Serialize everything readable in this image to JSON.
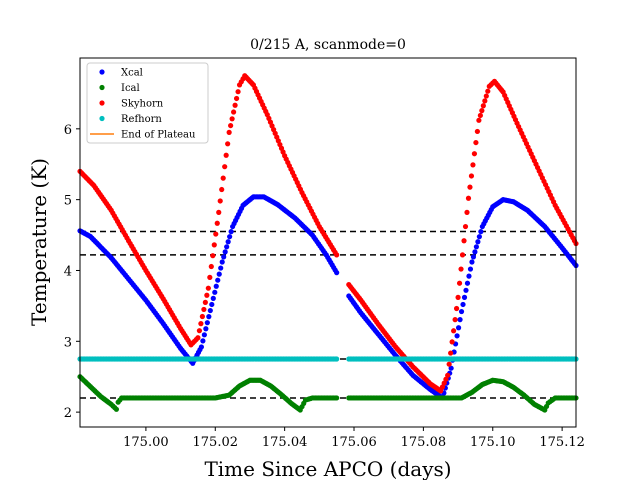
{
  "chart_data": {
    "type": "scatter",
    "title": "0/215 A, scanmode=0",
    "xlabel": "Time Since APCO (days)",
    "ylabel": "Temperature (K)",
    "xlim": [
      174.981,
      175.124
    ],
    "ylim": [
      1.79,
      7.0
    ],
    "x_ticks": [
      175.0,
      175.02,
      175.04,
      175.06,
      175.08,
      175.1,
      175.12
    ],
    "x_tick_labels": [
      "175.00",
      "175.02",
      "175.04",
      "175.06",
      "175.08",
      "175.10",
      "175.12"
    ],
    "y_ticks": [
      2,
      3,
      4,
      5,
      6
    ],
    "y_tick_labels": [
      "2",
      "3",
      "4",
      "5",
      "6"
    ],
    "grid": false,
    "legend_position": "top-left",
    "series": [
      {
        "name": "Xcal",
        "color": "#0000ff",
        "marker": "dot",
        "segments": [
          [
            [
              174.981,
              4.56
            ],
            [
              174.984,
              4.48
            ],
            [
              174.99,
              4.18
            ],
            [
              174.995,
              3.88
            ],
            [
              175.0,
              3.58
            ],
            [
              175.005,
              3.25
            ],
            [
              175.01,
              2.9
            ],
            [
              175.0135,
              2.69
            ],
            [
              175.016,
              2.92
            ],
            [
              175.019,
              3.52
            ],
            [
              175.022,
              4.12
            ],
            [
              175.025,
              4.62
            ],
            [
              175.028,
              4.92
            ],
            [
              175.031,
              5.04
            ],
            [
              175.034,
              5.04
            ],
            [
              175.038,
              4.93
            ],
            [
              175.043,
              4.74
            ],
            [
              175.048,
              4.5
            ],
            [
              175.052,
              4.22
            ],
            [
              175.055,
              3.97
            ]
          ],
          [
            [
              175.0585,
              3.64
            ],
            [
              175.062,
              3.4
            ],
            [
              175.067,
              3.1
            ],
            [
              175.072,
              2.8
            ],
            [
              175.077,
              2.52
            ],
            [
              175.082,
              2.32
            ],
            [
              175.0855,
              2.2
            ],
            [
              175.088,
              2.62
            ],
            [
              175.091,
              3.42
            ],
            [
              175.094,
              4.12
            ],
            [
              175.097,
              4.62
            ],
            [
              175.1,
              4.9
            ],
            [
              175.103,
              5.0
            ],
            [
              175.106,
              4.97
            ],
            [
              175.11,
              4.85
            ],
            [
              175.115,
              4.62
            ],
            [
              175.12,
              4.32
            ],
            [
              175.124,
              4.07
            ]
          ]
        ]
      },
      {
        "name": "Ical",
        "color": "#008000",
        "marker": "dot",
        "segments": [
          [
            [
              174.981,
              2.5
            ],
            [
              174.984,
              2.36
            ],
            [
              174.987,
              2.22
            ],
            [
              174.99,
              2.11
            ],
            [
              174.9915,
              2.04
            ],
            [
              174.992,
              2.14
            ],
            [
              174.993,
              2.2
            ],
            [
              175.0,
              2.2
            ],
            [
              175.01,
              2.2
            ],
            [
              175.02,
              2.2
            ],
            [
              175.024,
              2.24
            ],
            [
              175.027,
              2.37
            ],
            [
              175.03,
              2.45
            ],
            [
              175.033,
              2.45
            ],
            [
              175.036,
              2.37
            ],
            [
              175.039,
              2.25
            ],
            [
              175.042,
              2.12
            ],
            [
              175.0445,
              2.03
            ],
            [
              175.046,
              2.17
            ],
            [
              175.048,
              2.2
            ],
            [
              175.055,
              2.2
            ]
          ],
          [
            [
              175.0585,
              2.2
            ],
            [
              175.07,
              2.2
            ],
            [
              175.08,
              2.2
            ],
            [
              175.091,
              2.2
            ],
            [
              175.094,
              2.28
            ],
            [
              175.097,
              2.39
            ],
            [
              175.1,
              2.45
            ],
            [
              175.103,
              2.43
            ],
            [
              175.106,
              2.35
            ],
            [
              175.109,
              2.24
            ],
            [
              175.112,
              2.11
            ],
            [
              175.115,
              2.03
            ],
            [
              175.116,
              2.13
            ],
            [
              175.118,
              2.2
            ],
            [
              175.124,
              2.2
            ]
          ]
        ]
      },
      {
        "name": "Skyhorn",
        "color": "#ff0000",
        "marker": "dot",
        "segments": [
          [
            [
              174.981,
              5.4
            ],
            [
              174.985,
              5.2
            ],
            [
              174.99,
              4.85
            ],
            [
              174.995,
              4.42
            ],
            [
              175.0,
              4.0
            ],
            [
              175.005,
              3.6
            ],
            [
              175.01,
              3.18
            ],
            [
              175.013,
              2.95
            ],
            [
              175.015,
              3.05
            ],
            [
              175.018,
              3.75
            ],
            [
              175.021,
              4.82
            ],
            [
              175.024,
              5.95
            ],
            [
              175.027,
              6.62
            ],
            [
              175.0285,
              6.75
            ],
            [
              175.031,
              6.62
            ],
            [
              175.035,
              6.2
            ],
            [
              175.04,
              5.62
            ],
            [
              175.045,
              5.1
            ],
            [
              175.05,
              4.62
            ],
            [
              175.055,
              4.22
            ]
          ],
          [
            [
              175.0585,
              3.8
            ],
            [
              175.062,
              3.58
            ],
            [
              175.067,
              3.24
            ],
            [
              175.072,
              2.92
            ],
            [
              175.077,
              2.64
            ],
            [
              175.082,
              2.4
            ],
            [
              175.085,
              2.3
            ],
            [
              175.087,
              2.52
            ],
            [
              175.09,
              3.62
            ],
            [
              175.093,
              5.02
            ],
            [
              175.096,
              6.12
            ],
            [
              175.099,
              6.6
            ],
            [
              175.1005,
              6.67
            ],
            [
              175.103,
              6.52
            ],
            [
              175.107,
              6.08
            ],
            [
              175.112,
              5.55
            ],
            [
              175.118,
              4.92
            ],
            [
              175.124,
              4.38
            ]
          ]
        ]
      },
      {
        "name": "Refhorn",
        "color": "#00bfbf",
        "marker": "dot",
        "segments": [
          [
            [
              174.981,
              2.75
            ],
            [
              175.055,
              2.75
            ]
          ],
          [
            [
              175.0585,
              2.75
            ],
            [
              175.124,
              2.75
            ]
          ]
        ]
      }
    ],
    "line_series": [
      {
        "name": "End of Plateau",
        "color": "#ff7f0e"
      }
    ],
    "reference_lines": [
      {
        "y": 4.55,
        "style": "dashed",
        "color": "#000000"
      },
      {
        "y": 4.22,
        "style": "dashed",
        "color": "#000000"
      },
      {
        "y": 2.75,
        "style": "dashed",
        "color": "#000000"
      },
      {
        "y": 2.2,
        "style": "dashed",
        "color": "#000000"
      }
    ]
  }
}
